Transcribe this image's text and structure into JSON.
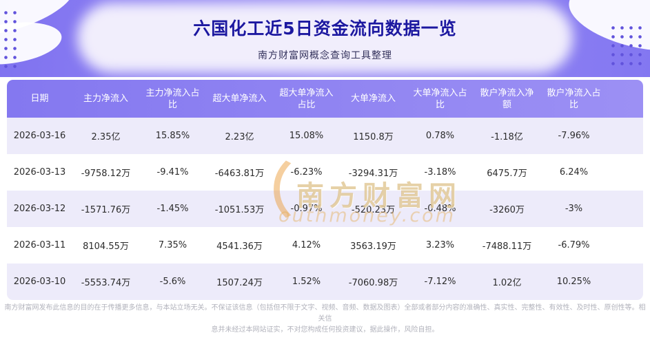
{
  "header": {
    "title": "六国化工近5日资金流向数据一览",
    "subtitle": "南方财富网概念查询工具整理"
  },
  "chart_data": {
    "type": "table",
    "title": "六国化工近5日资金流向数据一览",
    "columns": [
      "日期",
      "主力净流入",
      "主力净流入占比",
      "超大单净流入",
      "超大单净流入占比",
      "大单净流入",
      "大单净流入占比",
      "散户净流入净额",
      "散户净流入占比"
    ],
    "rows": [
      [
        "2026-03-16",
        "2.35亿",
        "15.85%",
        "2.23亿",
        "15.08%",
        "1150.8万",
        "0.78%",
        "-1.18亿",
        "-7.96%"
      ],
      [
        "2026-03-13",
        "-9758.12万",
        "-9.41%",
        "-6463.81万",
        "-6.23%",
        "-3294.31万",
        "-3.18%",
        "6475.7万",
        "6.24%"
      ],
      [
        "2026-03-12",
        "-1571.76万",
        "-1.45%",
        "-1051.53万",
        "-0.97%",
        "-520.23万",
        "-0.48%",
        "-3260万",
        "-3%"
      ],
      [
        "2026-03-11",
        "8104.55万",
        "7.35%",
        "4541.36万",
        "4.12%",
        "3563.19万",
        "3.23%",
        "-7488.11万",
        "-6.79%"
      ],
      [
        "2026-03-10",
        "-5553.74万",
        "-5.6%",
        "1507.24万",
        "1.52%",
        "-7060.98万",
        "-7.12%",
        "1.02亿",
        "10.25%"
      ]
    ]
  },
  "watermark": {
    "bracket": "（",
    "text": "南方财富网",
    "subtext": "outhmoney.com"
  },
  "footer": {
    "line1": "南方财富网发布此信息的目的在于传播更多信息，与本站立场无关。不保证该信息（包括但不限于文字、视频、音频、数据及图表）全部或者部分内容的准确性、真实性、完整性、有效性、及时性、原创性等。相关信",
    "line2": "息并未经过本网站证实，不对您构成任何投资建议，据此操作，风险自担。"
  },
  "colors": {
    "banner_purple": "#8478f0",
    "title_navy": "#1c18a0",
    "row_alt_lavender": "#edebfa",
    "table_header_text": "#ffffff",
    "watermark_orange": "#e0a050",
    "footer_gray": "#b2b3bc"
  }
}
